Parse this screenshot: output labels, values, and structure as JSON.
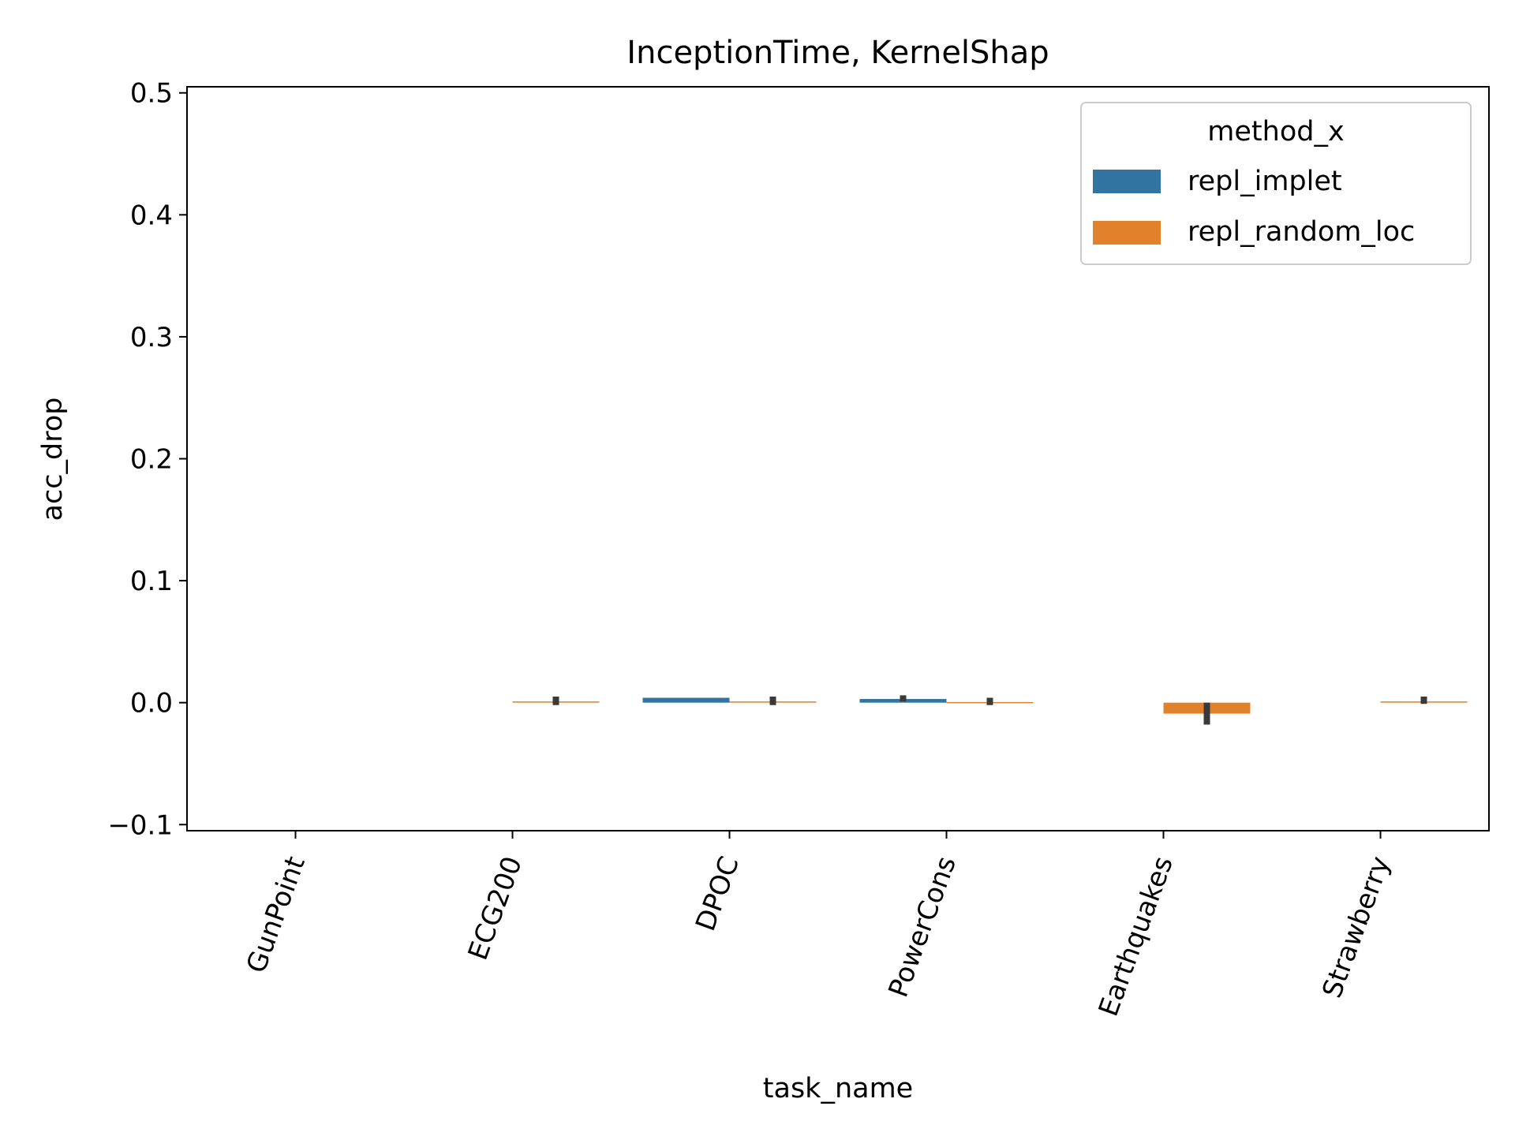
{
  "chart_data": {
    "type": "bar",
    "title": "InceptionTime, KernelShap",
    "xlabel": "task_name",
    "ylabel": "acc_drop",
    "categories": [
      "GunPoint",
      "ECG200",
      "DPOC",
      "PowerCons",
      "Earthquakes",
      "Strawberry"
    ],
    "ylim": [
      -0.105,
      0.505
    ],
    "yticks": [
      -0.1,
      0.0,
      0.1,
      0.2,
      0.3,
      0.4,
      0.5
    ],
    "ytick_labels": [
      "−0.1",
      "0.0",
      "0.1",
      "0.2",
      "0.3",
      "0.4",
      "0.5"
    ],
    "grid": false,
    "legend": {
      "title": "method_x",
      "placement": "upper-right"
    },
    "series": [
      {
        "name": "repl_implet",
        "color": "#3274a1",
        "values": [
          null,
          null,
          0.004,
          0.003,
          null,
          null
        ],
        "err_low": [
          null,
          null,
          null,
          0.001,
          null,
          null
        ],
        "err_high": [
          null,
          null,
          null,
          0.006,
          null,
          null
        ]
      },
      {
        "name": "repl_random_loc",
        "color": "#e1812c",
        "values": [
          null,
          0.001,
          0.001,
          0.0005,
          -0.009,
          0.001
        ],
        "err_low": [
          null,
          -0.002,
          -0.002,
          -0.002,
          -0.018,
          -0.001
        ],
        "err_high": [
          null,
          0.005,
          0.005,
          0.004,
          0.0,
          0.005
        ]
      }
    ],
    "error_bar_color": "#3a3a3a"
  }
}
